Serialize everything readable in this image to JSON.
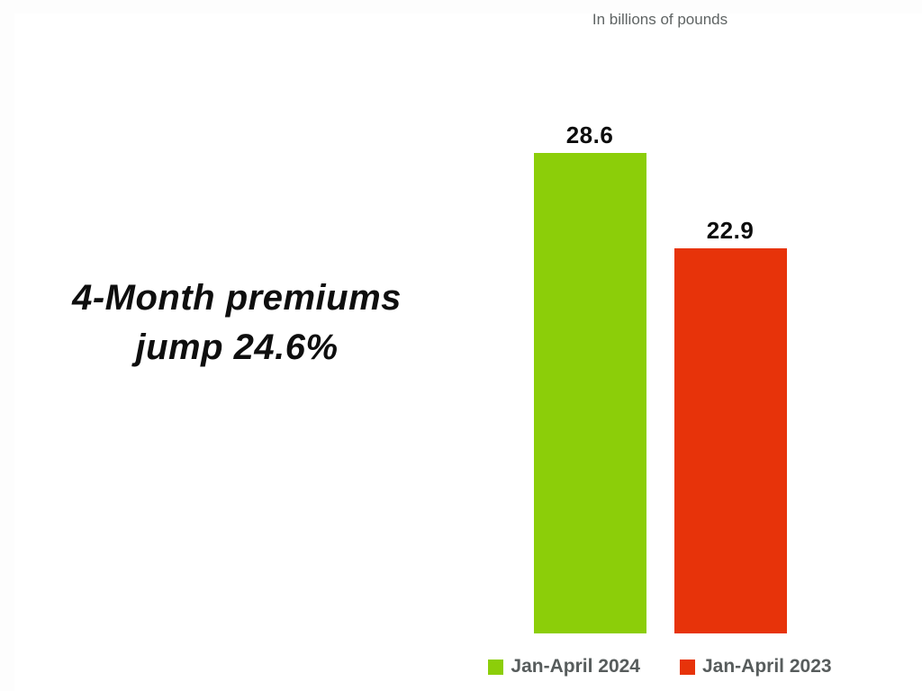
{
  "units_note": "In billions of pounds",
  "headline": {
    "line1": "4-Month premiums",
    "line2": "jump 24.6%"
  },
  "chart_data": {
    "type": "bar",
    "title": "4-Month premiums jump 24.6%",
    "note": "In billions of pounds",
    "categories": [
      "Jan-April 2024",
      "Jan-April 2023"
    ],
    "values": [
      28.6,
      22.9
    ],
    "value_labels": [
      "28.6",
      "22.9"
    ],
    "colors": [
      "#8CCE09",
      "#E7330A"
    ],
    "ylim": [
      0,
      28.6
    ],
    "xlabel": "",
    "ylabel": "",
    "grid": false,
    "axes_visible": false,
    "legend_position": "bottom",
    "value_label_color": "#0d0d0d",
    "legend_text_color": "#575c5c"
  }
}
